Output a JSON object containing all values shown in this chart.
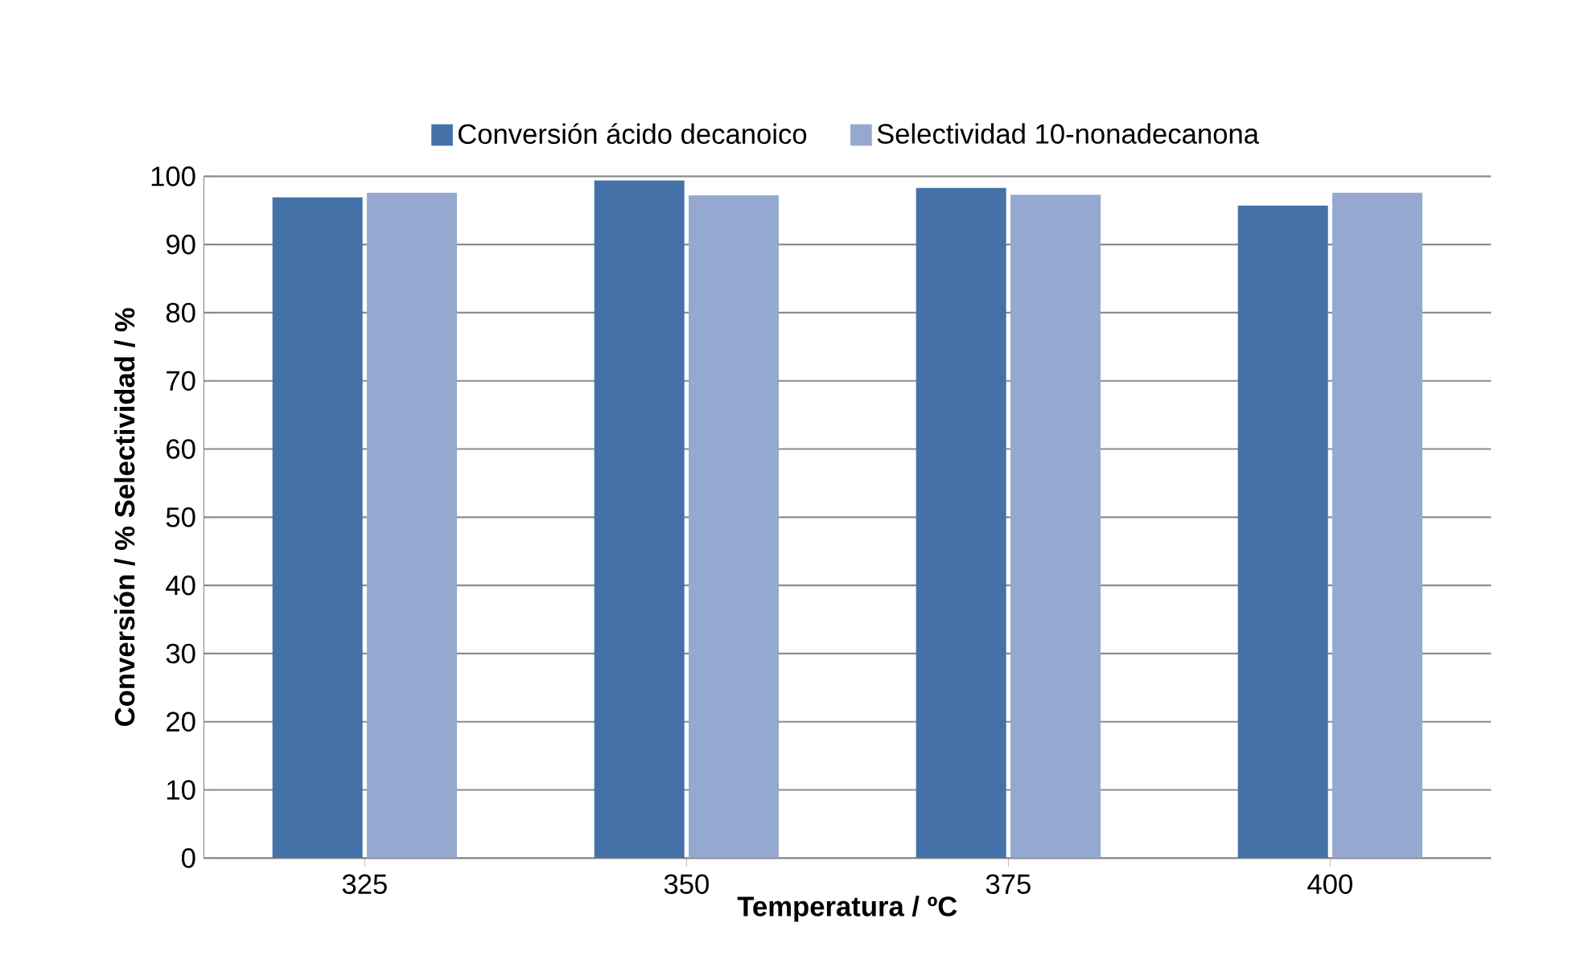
{
  "chart_data": {
    "type": "bar",
    "categories": [
      "325",
      "350",
      "375",
      "400"
    ],
    "xlabel": "Temperatura / ºC",
    "ylabel": "Conversión / %     Selectividad / %",
    "ylim": [
      0,
      100
    ],
    "yticks": [
      0,
      10,
      20,
      30,
      40,
      50,
      60,
      70,
      80,
      90,
      100
    ],
    "grid": "y",
    "legend": "top",
    "series": [
      {
        "name": "Conversión ácido decanoico",
        "color": "#4472a8",
        "values": [
          96.9,
          99.4,
          98.3,
          95.7
        ]
      },
      {
        "name": "Selectividad 10-nonadecanona",
        "color": "#95a9d0",
        "values": [
          97.6,
          97.2,
          97.3,
          97.6
        ]
      }
    ]
  }
}
